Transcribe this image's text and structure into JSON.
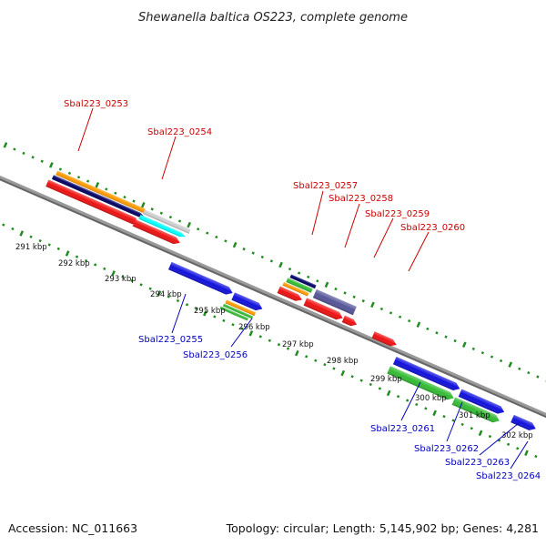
{
  "title": "Shewanella baltica OS223, complete genome",
  "accession": "Accession: NC_011663",
  "summary": "Topology: circular; Length: 5,145,902 bp; Genes: 4,281",
  "kbp_labels": [
    "291 kbp",
    "292 kbp",
    "293 kbp",
    "294 kbp",
    "295 kbp",
    "296 kbp",
    "297 kbp",
    "298 kbp",
    "299 kbp",
    "300 kbp",
    "301 kbp",
    "302 kbp"
  ],
  "gene_labels_top": [
    "Sbal223_0253",
    "Sbal223_0254",
    "Sbal223_0257",
    "Sbal223_0258",
    "Sbal223_0259",
    "Sbal223_0260"
  ],
  "gene_labels_bottom": [
    "Sbal223_0255",
    "Sbal223_0256",
    "Sbal223_0261",
    "Sbal223_0262",
    "Sbal223_0263",
    "Sbal223_0264"
  ],
  "colors": {
    "top_label": "#cc0000",
    "bottom_label": "#0000bb",
    "backbone": "#888888",
    "ticks": "#228b22",
    "red": "#ee1111",
    "blue": "#1010dd",
    "green": "#33bb33",
    "orange": "#ff9900",
    "navy": "#000066",
    "cyan": "#00ffff",
    "gray": "#cccccc",
    "slate": "#555599"
  }
}
